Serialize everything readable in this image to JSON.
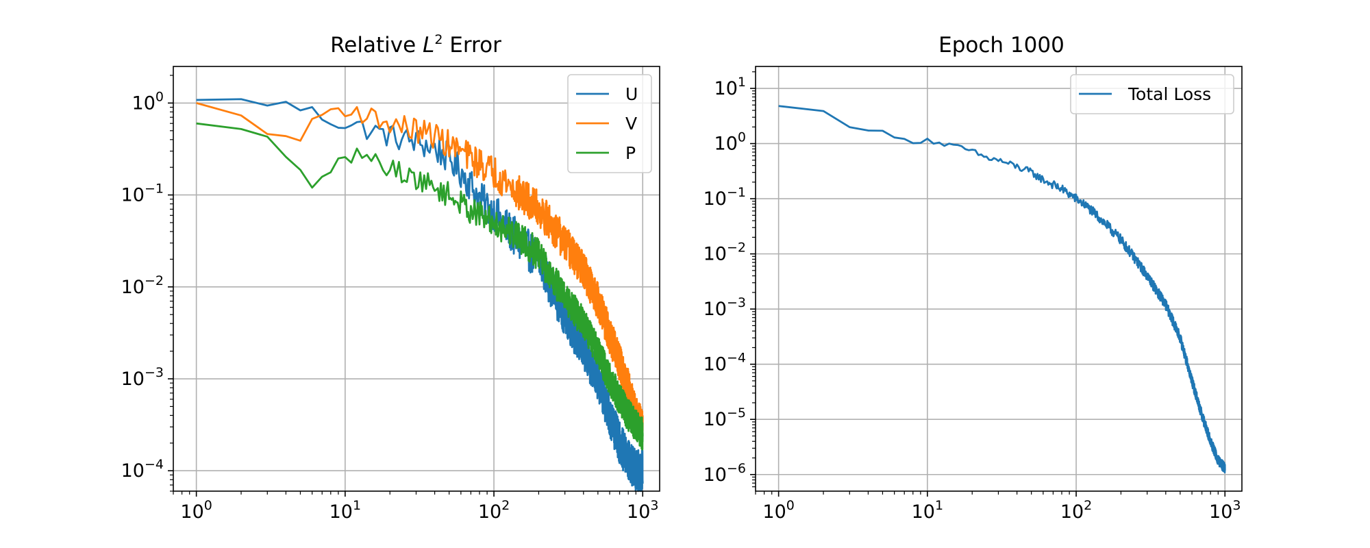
{
  "chart_data": [
    {
      "type": "line",
      "title_prefix": "Relative ",
      "title_var": "L",
      "title_sup": "2",
      "title_suffix": " Error",
      "xscale": "log",
      "yscale": "log",
      "xlim": [
        0.7,
        1300
      ],
      "ylim": [
        6e-05,
        2.5
      ],
      "xticks": [
        {
          "base": "10",
          "exp": "0"
        },
        {
          "base": "10",
          "exp": "1"
        },
        {
          "base": "10",
          "exp": "2"
        },
        {
          "base": "10",
          "exp": "3"
        }
      ],
      "yticks": [
        {
          "base": "10",
          "exp": "0"
        },
        {
          "base": "10",
          "exp": "−1"
        },
        {
          "base": "10",
          "exp": "−2"
        },
        {
          "base": "10",
          "exp": "−3"
        },
        {
          "base": "10",
          "exp": "−4"
        }
      ],
      "grid": true,
      "legend_position": "upper right",
      "series": [
        {
          "name": "U",
          "color": "#1f77b4",
          "points": [
            [
              1,
              1.08
            ],
            [
              2,
              1.05
            ],
            [
              3,
              1.02
            ],
            [
              4,
              0.95
            ],
            [
              5,
              0.88
            ],
            [
              6,
              0.8
            ],
            [
              7,
              0.72
            ],
            [
              8,
              0.66
            ],
            [
              10,
              0.6
            ],
            [
              12,
              0.56
            ],
            [
              15,
              0.5
            ],
            [
              20,
              0.44
            ],
            [
              25,
              0.4
            ],
            [
              30,
              0.38
            ],
            [
              40,
              0.32
            ],
            [
              50,
              0.25
            ],
            [
              60,
              0.18
            ],
            [
              70,
              0.13
            ],
            [
              80,
              0.09
            ],
            [
              100,
              0.065
            ],
            [
              120,
              0.045
            ],
            [
              150,
              0.03
            ],
            [
              200,
              0.02
            ],
            [
              250,
              0.009
            ],
            [
              300,
              0.005
            ],
            [
              400,
              0.002
            ],
            [
              500,
              0.001
            ],
            [
              600,
              0.0004
            ],
            [
              700,
              0.0002
            ],
            [
              800,
              0.00013
            ],
            [
              900,
              0.0001
            ],
            [
              1000,
              0.0001
            ]
          ],
          "noise_amplitude": 0.45
        },
        {
          "name": "V",
          "color": "#ff7f0e",
          "points": [
            [
              1,
              1.0
            ],
            [
              2,
              0.7
            ],
            [
              3,
              0.52
            ],
            [
              4,
              0.38
            ],
            [
              5,
              0.39
            ],
            [
              6,
              0.68
            ],
            [
              7,
              0.75
            ],
            [
              8,
              0.82
            ],
            [
              10,
              0.88
            ],
            [
              12,
              0.8
            ],
            [
              15,
              0.7
            ],
            [
              20,
              0.6
            ],
            [
              25,
              0.55
            ],
            [
              30,
              0.5
            ],
            [
              40,
              0.45
            ],
            [
              50,
              0.35
            ],
            [
              60,
              0.3
            ],
            [
              70,
              0.25
            ],
            [
              80,
              0.22
            ],
            [
              100,
              0.18
            ],
            [
              120,
              0.14
            ],
            [
              150,
              0.1
            ],
            [
              200,
              0.07
            ],
            [
              250,
              0.045
            ],
            [
              300,
              0.03
            ],
            [
              400,
              0.015
            ],
            [
              500,
              0.007
            ],
            [
              600,
              0.003
            ],
            [
              700,
              0.0015
            ],
            [
              800,
              0.0008
            ],
            [
              900,
              0.0004
            ],
            [
              1000,
              0.0003
            ]
          ],
          "noise_amplitude": 0.4
        },
        {
          "name": "P",
          "color": "#2ca02c",
          "points": [
            [
              1,
              0.6
            ],
            [
              2,
              0.5
            ],
            [
              3,
              0.4
            ],
            [
              4,
              0.28
            ],
            [
              5,
              0.18
            ],
            [
              6,
              0.135
            ],
            [
              7,
              0.15
            ],
            [
              8,
              0.15
            ],
            [
              9,
              0.21
            ],
            [
              10,
              0.23
            ],
            [
              11,
              0.27
            ],
            [
              12,
              0.28
            ],
            [
              13,
              0.28
            ],
            [
              15,
              0.24
            ],
            [
              20,
              0.2
            ],
            [
              25,
              0.17
            ],
            [
              30,
              0.15
            ],
            [
              40,
              0.12
            ],
            [
              50,
              0.1
            ],
            [
              60,
              0.08
            ],
            [
              80,
              0.06
            ],
            [
              100,
              0.05
            ],
            [
              150,
              0.035
            ],
            [
              200,
              0.022
            ],
            [
              250,
              0.012
            ],
            [
              300,
              0.008
            ],
            [
              400,
              0.004
            ],
            [
              500,
              0.002
            ],
            [
              600,
              0.001
            ],
            [
              700,
              0.0006
            ],
            [
              800,
              0.0004
            ],
            [
              1000,
              0.00025
            ]
          ],
          "noise_amplitude": 0.35
        }
      ]
    },
    {
      "type": "line",
      "title": "Epoch 1000",
      "xscale": "log",
      "yscale": "log",
      "xlim": [
        0.7,
        1300
      ],
      "ylim": [
        5e-07,
        25
      ],
      "xticks": [
        {
          "base": "10",
          "exp": "0"
        },
        {
          "base": "10",
          "exp": "1"
        },
        {
          "base": "10",
          "exp": "2"
        },
        {
          "base": "10",
          "exp": "3"
        }
      ],
      "yticks": [
        {
          "base": "10",
          "exp": "1"
        },
        {
          "base": "10",
          "exp": "0"
        },
        {
          "base": "10",
          "exp": "−1"
        },
        {
          "base": "10",
          "exp": "−2"
        },
        {
          "base": "10",
          "exp": "−3"
        },
        {
          "base": "10",
          "exp": "−4"
        },
        {
          "base": "10",
          "exp": "−5"
        },
        {
          "base": "10",
          "exp": "−6"
        }
      ],
      "grid": true,
      "legend_position": "upper right",
      "series": [
        {
          "name": "Total Loss",
          "color": "#1f77b4",
          "points": [
            [
              1,
              4.8
            ],
            [
              2,
              3.8
            ],
            [
              3,
              2.1
            ],
            [
              4,
              1.8
            ],
            [
              5,
              1.6
            ],
            [
              6,
              1.3
            ],
            [
              7,
              1.15
            ],
            [
              8,
              1.1
            ],
            [
              9,
              1.12
            ],
            [
              10,
              1.2
            ],
            [
              12,
              1.0
            ],
            [
              15,
              0.9
            ],
            [
              20,
              0.72
            ],
            [
              25,
              0.55
            ],
            [
              30,
              0.5
            ],
            [
              40,
              0.38
            ],
            [
              50,
              0.3
            ],
            [
              60,
              0.22
            ],
            [
              80,
              0.15
            ],
            [
              100,
              0.1
            ],
            [
              120,
              0.07
            ],
            [
              150,
              0.04
            ],
            [
              200,
              0.018
            ],
            [
              250,
              0.008
            ],
            [
              300,
              0.004
            ],
            [
              400,
              0.0012
            ],
            [
              500,
              0.0003
            ],
            [
              600,
              5e-05
            ],
            [
              700,
              1.2e-05
            ],
            [
              800,
              4e-06
            ],
            [
              900,
              1.8e-06
            ],
            [
              1000,
              1.3e-06
            ]
          ],
          "noise_amplitude": 0.18
        }
      ]
    }
  ]
}
